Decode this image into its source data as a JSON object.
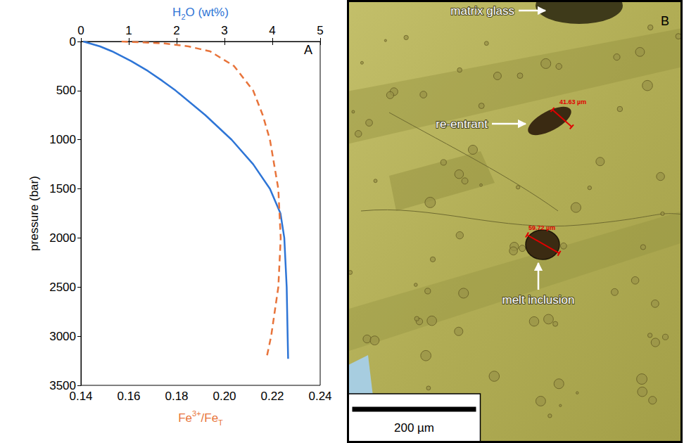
{
  "chart_data": {
    "type": "line",
    "panel_label": "A",
    "xlabel": "Fe3+/FeT",
    "x2label": "H2O (wt%)",
    "ylabel": "pressure (bar)",
    "xlim": [
      0.14,
      0.24
    ],
    "xticks": [
      0.14,
      0.16,
      0.18,
      {
        "value": 0.2,
        "label": "0.20"
      },
      0.22,
      0.24
    ],
    "x2lim": [
      0,
      5
    ],
    "x2ticks": [
      0,
      1,
      2,
      3,
      4,
      5
    ],
    "ylim": [
      3500,
      0
    ],
    "yticks": [
      0,
      500,
      1000,
      1500,
      2000,
      2500,
      3000,
      3500
    ],
    "grid": false,
    "series": [
      {
        "axis": "x2",
        "color": "#2e75d6",
        "line_style": "solid",
        "x": [
          0.05,
          0.4,
          0.65,
          1.05,
          1.4,
          1.7,
          1.98,
          2.6,
          3.15,
          3.6,
          3.95,
          4.17,
          4.25,
          4.3,
          4.32,
          4.33
        ],
        "y": [
          0,
          50,
          100,
          200,
          300,
          400,
          500,
          750,
          1000,
          1250,
          1500,
          1750,
          2000,
          2500,
          3000,
          3230
        ]
      },
      {
        "axis": "x",
        "color": "#e8743b",
        "line_style": "dashed",
        "x": [
          0.157,
          0.175,
          0.185,
          0.194,
          0.204,
          0.212,
          0.216,
          0.219,
          0.2225,
          0.2235,
          0.2225,
          0.2195,
          0.2175
        ],
        "y": [
          0,
          20,
          50,
          100,
          250,
          500,
          750,
          1000,
          1500,
          2000,
          2500,
          3000,
          3230
        ]
      }
    ]
  },
  "micrograph": {
    "panel_label": "B",
    "annotations": [
      {
        "text": "matrix glass"
      },
      {
        "text": "re-entrant"
      },
      {
        "text": "melt inclusion"
      }
    ],
    "measurements": [
      {
        "value": 41.63,
        "label": "41.63 µm"
      },
      {
        "value": 59.72,
        "label": "59.72 µm"
      }
    ],
    "scale_bar": {
      "value": 200,
      "label": "200 µm"
    }
  }
}
